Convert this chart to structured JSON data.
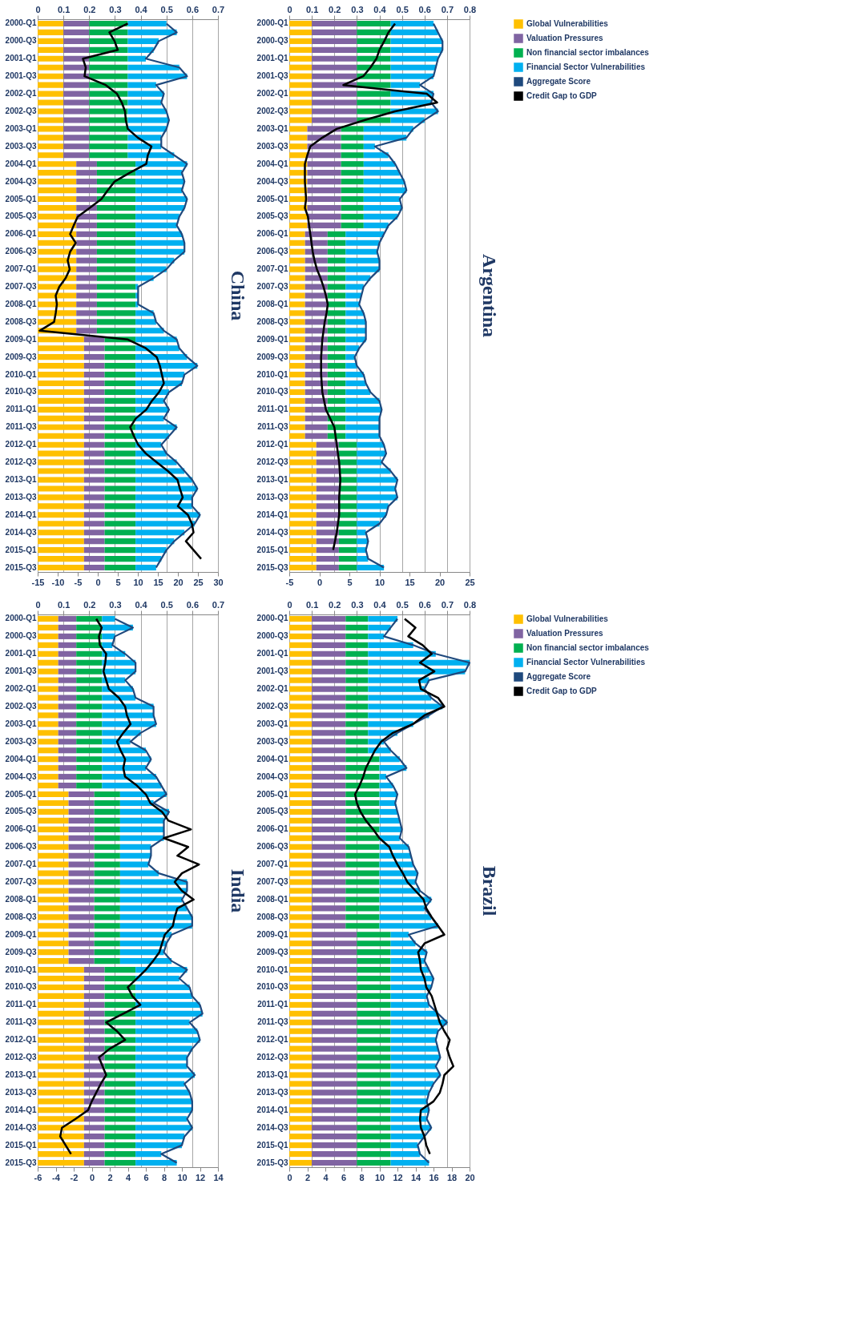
{
  "chart_data": [
    {
      "type": "bar",
      "orientation": "horizontal",
      "stacked": true,
      "title": "China",
      "grid": "x",
      "legend": "right",
      "categories": [
        "2000-Q1",
        null,
        "2000-Q3",
        null,
        "2001-Q1",
        null,
        "2001-Q3",
        null,
        "2002-Q1",
        null,
        "2002-Q3",
        null,
        "2003-Q1",
        null,
        "2003-Q3",
        null,
        "2004-Q1",
        null,
        "2004-Q3",
        null,
        "2005-Q1",
        null,
        "2005-Q3",
        null,
        "2006-Q1",
        null,
        "2006-Q3",
        null,
        "2007-Q1",
        null,
        "2007-Q3",
        null,
        "2008-Q1",
        null,
        "2008-Q3",
        null,
        "2009-Q1",
        null,
        "2009-Q3",
        null,
        "2010-Q1",
        null,
        "2010-Q3",
        null,
        "2011-Q1",
        null,
        "2011-Q3",
        null,
        "2012-Q1",
        null,
        "2012-Q3",
        null,
        "2013-Q1",
        null,
        "2013-Q3",
        null,
        "2014-Q1",
        null,
        "2014-Q3",
        null,
        "2015-Q1",
        null,
        "2015-Q3"
      ],
      "xlim": [
        0,
        0.7
      ],
      "xticks": [
        0,
        0.1,
        0.2,
        0.3,
        0.4,
        0.5,
        0.6,
        0.7
      ],
      "x2lim": [
        -15,
        30
      ],
      "x2ticks": [
        -15,
        -10,
        -5,
        0,
        5,
        10,
        15,
        20,
        25,
        30
      ],
      "series": [
        {
          "name": "Global Vulnerabilities",
          "color": "#ffc000",
          "values": [
            0.1,
            0.1,
            0.1,
            0.1,
            0.1,
            0.1,
            0.1,
            0.1,
            0.1,
            0.1,
            0.1,
            0.1,
            0.1,
            0.1,
            0.1,
            0.1,
            0.15,
            0.15,
            0.15,
            0.15,
            0.15,
            0.15,
            0.15,
            0.15,
            0.15,
            0.15,
            0.15,
            0.15,
            0.15,
            0.15,
            0.15,
            0.15,
            0.15,
            0.15,
            0.15,
            0.15,
            0.18,
            0.18,
            0.18,
            0.18,
            0.18,
            0.18,
            0.18,
            0.18,
            0.18,
            0.18,
            0.18,
            0.18,
            0.18,
            0.18,
            0.18,
            0.18,
            0.18,
            0.18,
            0.18,
            0.18,
            0.18,
            0.18,
            0.18,
            0.18,
            0.18,
            0.18,
            0.18
          ]
        },
        {
          "name": "Valuation Pressures",
          "color": "#8064a2",
          "values": [
            0.1,
            0.1,
            0.1,
            0.1,
            0.1,
            0.1,
            0.1,
            0.1,
            0.1,
            0.1,
            0.1,
            0.1,
            0.1,
            0.1,
            0.1,
            0.1,
            0.08,
            0.08,
            0.08,
            0.08,
            0.08,
            0.08,
            0.08,
            0.08,
            0.08,
            0.08,
            0.08,
            0.08,
            0.08,
            0.08,
            0.08,
            0.08,
            0.08,
            0.08,
            0.08,
            0.08,
            0.08,
            0.08,
            0.08,
            0.08,
            0.08,
            0.08,
            0.08,
            0.08,
            0.08,
            0.08,
            0.08,
            0.08,
            0.08,
            0.08,
            0.08,
            0.08,
            0.08,
            0.08,
            0.08,
            0.08,
            0.08,
            0.08,
            0.08,
            0.08,
            0.08,
            0.08,
            0.08
          ]
        },
        {
          "name": "Non financial sector imbalances",
          "color": "#00b050",
          "values": [
            0.15,
            0.15,
            0.15,
            0.15,
            0.15,
            0.15,
            0.15,
            0.15,
            0.15,
            0.15,
            0.15,
            0.15,
            0.15,
            0.15,
            0.15,
            0.15,
            0.15,
            0.15,
            0.15,
            0.15,
            0.15,
            0.15,
            0.15,
            0.15,
            0.15,
            0.15,
            0.15,
            0.15,
            0.15,
            0.15,
            0.15,
            0.15,
            0.15,
            0.15,
            0.15,
            0.15,
            0.12,
            0.12,
            0.12,
            0.12,
            0.12,
            0.12,
            0.12,
            0.12,
            0.12,
            0.12,
            0.12,
            0.12,
            0.12,
            0.12,
            0.12,
            0.12,
            0.12,
            0.12,
            0.12,
            0.12,
            0.12,
            0.12,
            0.12,
            0.12,
            0.12,
            0.12,
            0.12
          ]
        },
        {
          "name": "Financial Sector Vulnerabilities",
          "color": "#00b0f0",
          "values": [
            0.15,
            0.19,
            0.12,
            0.1,
            0.07,
            0.2,
            0.23,
            0.11,
            0.14,
            0.13,
            0.15,
            0.16,
            0.15,
            0.13,
            0.13,
            0.18,
            0.2,
            0.18,
            0.19,
            0.18,
            0.2,
            0.19,
            0.17,
            0.16,
            0.18,
            0.19,
            0.19,
            0.15,
            0.12,
            0.07,
            0.01,
            0.01,
            0.01,
            0.07,
            0.08,
            0.11,
            0.16,
            0.17,
            0.2,
            0.24,
            0.19,
            0.18,
            0.13,
            0.11,
            0.13,
            0.11,
            0.16,
            0.13,
            0.1,
            0.12,
            0.16,
            0.19,
            0.22,
            0.24,
            0.22,
            0.22,
            0.25,
            0.23,
            0.19,
            0.15,
            0.12,
            0.1,
            0.08
          ]
        },
        {
          "name": "Aggregate Score",
          "type": "line",
          "color": "#1f497d",
          "values": [
            0.5,
            0.54,
            0.47,
            0.45,
            0.42,
            0.55,
            0.58,
            0.46,
            0.49,
            0.48,
            0.5,
            0.51,
            0.5,
            0.48,
            0.48,
            0.53,
            0.58,
            0.56,
            0.57,
            0.56,
            0.58,
            0.57,
            0.55,
            0.54,
            0.56,
            0.57,
            0.57,
            0.53,
            0.5,
            0.45,
            0.39,
            0.39,
            0.39,
            0.45,
            0.46,
            0.49,
            0.54,
            0.55,
            0.58,
            0.62,
            0.57,
            0.56,
            0.51,
            0.49,
            0.51,
            0.49,
            0.54,
            0.51,
            0.48,
            0.5,
            0.54,
            0.57,
            0.6,
            0.62,
            0.6,
            0.6,
            0.63,
            0.61,
            0.57,
            0.53,
            0.5,
            0.48,
            0.46
          ]
        },
        {
          "name": "Credit Gap to GDP",
          "type": "line",
          "axis": "x2",
          "color": "#000000",
          "values": [
            7.5,
            2.9,
            4.2,
            5.0,
            -3.7,
            -3.0,
            -3.3,
            2.0,
            4.8,
            6.0,
            6.8,
            7.0,
            7.5,
            10.0,
            13.4,
            12.5,
            12.1,
            8.0,
            4.2,
            2.5,
            0.9,
            -2.0,
            -5.0,
            -6.0,
            -6.9,
            -5.5,
            -6.9,
            -7.5,
            -7.0,
            -8.0,
            -9.6,
            -10.5,
            -10.2,
            -10.5,
            -10.9,
            -14.5,
            7.5,
            12.0,
            14.7,
            15.5,
            16.0,
            16.5,
            15.3,
            13.5,
            12.1,
            9.5,
            8.1,
            9.0,
            10.1,
            12.0,
            14.7,
            17.5,
            19.9,
            20.5,
            21.2,
            20.0,
            22.5,
            23.5,
            23.9,
            22.0,
            23.9,
            25.8,
            null
          ]
        }
      ]
    },
    {
      "type": "bar",
      "orientation": "horizontal",
      "stacked": true,
      "title": "Argentina",
      "grid": "x",
      "legend": "right",
      "categories": [
        "2000-Q1",
        null,
        "2000-Q3",
        null,
        "2001-Q1",
        null,
        "2001-Q3",
        null,
        "2002-Q1",
        null,
        "2002-Q3",
        null,
        "2003-Q1",
        null,
        "2003-Q3",
        null,
        "2004-Q1",
        null,
        "2004-Q3",
        null,
        "2005-Q1",
        null,
        "2005-Q3",
        null,
        "2006-Q1",
        null,
        "2006-Q3",
        null,
        "2007-Q1",
        null,
        "2007-Q3",
        null,
        "2008-Q1",
        null,
        "2008-Q3",
        null,
        "2009-Q1",
        null,
        "2009-Q3",
        null,
        "2010-Q1",
        null,
        "2010-Q3",
        null,
        "2011-Q1",
        null,
        "2011-Q3",
        null,
        "2012-Q1",
        null,
        "2012-Q3",
        null,
        "2013-Q1",
        null,
        "2013-Q3",
        null,
        "2014-Q1",
        null,
        "2014-Q3",
        null,
        "2015-Q1",
        null,
        "2015-Q3"
      ],
      "xlim": [
        0,
        0.8
      ],
      "xticks": [
        0,
        0.1,
        0.2,
        0.3,
        0.4,
        0.5,
        0.6,
        0.7,
        0.8
      ],
      "x2lim": [
        -5,
        25
      ],
      "x2ticks": [
        -5,
        0,
        5,
        10,
        15,
        20,
        25
      ],
      "series": [
        {
          "name": "Global Vulnerabilities",
          "color": "#ffc000",
          "values": [
            0.1,
            0.1,
            0.1,
            0.1,
            0.1,
            0.1,
            0.1,
            0.1,
            0.1,
            0.1,
            0.1,
            0.1,
            0.08,
            0.08,
            0.08,
            0.08,
            0.08,
            0.08,
            0.08,
            0.08,
            0.08,
            0.08,
            0.08,
            0.08,
            0.07,
            0.07,
            0.07,
            0.07,
            0.07,
            0.07,
            0.07,
            0.07,
            0.07,
            0.07,
            0.07,
            0.07,
            0.07,
            0.07,
            0.07,
            0.07,
            0.07,
            0.07,
            0.07,
            0.07,
            0.07,
            0.07,
            0.07,
            0.07,
            0.12,
            0.12,
            0.12,
            0.12,
            0.12,
            0.12,
            0.12,
            0.12,
            0.12,
            0.12,
            0.12,
            0.12,
            0.12,
            0.12,
            0.12
          ]
        },
        {
          "name": "Valuation Pressures",
          "color": "#8064a2",
          "values": [
            0.2,
            0.2,
            0.2,
            0.2,
            0.2,
            0.2,
            0.2,
            0.2,
            0.2,
            0.2,
            0.2,
            0.2,
            0.15,
            0.15,
            0.15,
            0.15,
            0.15,
            0.15,
            0.15,
            0.15,
            0.15,
            0.15,
            0.15,
            0.15,
            0.1,
            0.1,
            0.1,
            0.1,
            0.1,
            0.1,
            0.1,
            0.1,
            0.1,
            0.1,
            0.1,
            0.1,
            0.1,
            0.1,
            0.1,
            0.1,
            0.1,
            0.1,
            0.1,
            0.1,
            0.1,
            0.1,
            0.1,
            0.1,
            0.1,
            0.1,
            0.1,
            0.1,
            0.1,
            0.1,
            0.1,
            0.1,
            0.1,
            0.1,
            0.1,
            0.1,
            0.1,
            0.1,
            0.1
          ]
        },
        {
          "name": "Non financial sector imbalances",
          "color": "#00b050",
          "values": [
            0.15,
            0.15,
            0.15,
            0.15,
            0.15,
            0.15,
            0.15,
            0.15,
            0.15,
            0.15,
            0.15,
            0.15,
            0.1,
            0.1,
            0.1,
            0.1,
            0.1,
            0.1,
            0.1,
            0.1,
            0.1,
            0.1,
            0.1,
            0.1,
            0.08,
            0.08,
            0.08,
            0.08,
            0.08,
            0.08,
            0.08,
            0.08,
            0.08,
            0.08,
            0.08,
            0.08,
            0.08,
            0.08,
            0.08,
            0.08,
            0.08,
            0.08,
            0.08,
            0.08,
            0.08,
            0.08,
            0.08,
            0.08,
            0.08,
            0.08,
            0.08,
            0.08,
            0.08,
            0.08,
            0.08,
            0.08,
            0.08,
            0.08,
            0.08,
            0.08,
            0.08,
            0.08,
            0.08
          ]
        },
        {
          "name": "Financial Sector Vulnerabilities",
          "color": "#00b0f0",
          "values": [
            0.19,
            0.21,
            0.23,
            0.23,
            0.21,
            0.2,
            0.19,
            0.13,
            0.19,
            0.18,
            0.21,
            0.15,
            0.22,
            0.19,
            0.05,
            0.11,
            0.14,
            0.16,
            0.18,
            0.19,
            0.16,
            0.17,
            0.15,
            0.11,
            0.17,
            0.15,
            0.14,
            0.15,
            0.15,
            0.11,
            0.08,
            0.07,
            0.06,
            0.08,
            0.09,
            0.09,
            0.09,
            0.06,
            0.04,
            0.05,
            0.08,
            0.09,
            0.11,
            0.15,
            0.16,
            0.15,
            0.15,
            0.15,
            0.12,
            0.13,
            0.11,
            0.15,
            0.18,
            0.17,
            0.18,
            0.14,
            0.13,
            0.1,
            0.04,
            0.05,
            0.04,
            0.05,
            0.12
          ]
        },
        {
          "name": "Aggregate Score",
          "type": "line",
          "color": "#1f497d",
          "values": [
            0.64,
            0.66,
            0.68,
            0.68,
            0.66,
            0.65,
            0.64,
            0.58,
            0.64,
            0.63,
            0.66,
            0.6,
            0.55,
            0.52,
            0.38,
            0.44,
            0.47,
            0.49,
            0.51,
            0.52,
            0.49,
            0.5,
            0.48,
            0.44,
            0.42,
            0.4,
            0.39,
            0.4,
            0.4,
            0.36,
            0.33,
            0.32,
            0.31,
            0.33,
            0.34,
            0.34,
            0.34,
            0.31,
            0.29,
            0.3,
            0.33,
            0.34,
            0.36,
            0.4,
            0.41,
            0.4,
            0.4,
            0.4,
            0.42,
            0.43,
            0.41,
            0.45,
            0.48,
            0.47,
            0.48,
            0.44,
            0.43,
            0.4,
            0.34,
            0.35,
            0.34,
            0.35,
            0.42
          ]
        },
        {
          "name": "Credit Gap to GDP",
          "type": "line",
          "axis": "x2",
          "color": "#000000",
          "values": [
            12.6,
            11.5,
            10.8,
            10.0,
            9.5,
            8.5,
            7.3,
            4.0,
            17.9,
            19.6,
            12.6,
            7.5,
            2.9,
            0.5,
            -1.5,
            -2.0,
            -2.4,
            -2.4,
            -2.4,
            -2.3,
            -2.2,
            -2.4,
            -1.9,
            -1.7,
            -1.5,
            -1.3,
            -1.1,
            -0.8,
            -0.4,
            0.2,
            0.7,
            1.1,
            1.4,
            1.2,
            0.9,
            0.7,
            0.5,
            0.4,
            0.3,
            0.3,
            0.3,
            0.4,
            0.5,
            0.8,
            1.1,
            1.8,
            2.5,
            2.7,
            2.9,
            3.1,
            3.3,
            3.4,
            3.5,
            3.4,
            3.3,
            3.3,
            3.3,
            3.1,
            2.9,
            2.6,
            2.3,
            null,
            null
          ]
        }
      ]
    },
    {
      "type": "bar",
      "orientation": "horizontal",
      "stacked": true,
      "title": "India",
      "grid": "x",
      "legend": "right",
      "categories": [
        "2000-Q1",
        null,
        "2000-Q3",
        null,
        "2001-Q1",
        null,
        "2001-Q3",
        null,
        "2002-Q1",
        null,
        "2002-Q3",
        null,
        "2003-Q1",
        null,
        "2003-Q3",
        null,
        "2004-Q1",
        null,
        "2004-Q3",
        null,
        "2005-Q1",
        null,
        "2005-Q3",
        null,
        "2006-Q1",
        null,
        "2006-Q3",
        null,
        "2007-Q1",
        null,
        "2007-Q3",
        null,
        "2008-Q1",
        null,
        "2008-Q3",
        null,
        "2009-Q1",
        null,
        "2009-Q3",
        null,
        "2010-Q1",
        null,
        "2010-Q3",
        null,
        "2011-Q1",
        null,
        "2011-Q3",
        null,
        "2012-Q1",
        null,
        "2012-Q3",
        null,
        "2013-Q1",
        null,
        "2013-Q3",
        null,
        "2014-Q1",
        null,
        "2014-Q3",
        null,
        "2015-Q1",
        null,
        "2015-Q3"
      ],
      "xlim": [
        0,
        0.7
      ],
      "xticks": [
        0,
        0.1,
        0.2,
        0.3,
        0.4,
        0.5,
        0.6,
        0.7
      ],
      "x2lim": [
        -6,
        14
      ],
      "x2ticks": [
        -6,
        -4,
        -2,
        0,
        2,
        4,
        6,
        8,
        10,
        12,
        14
      ],
      "series": [
        {
          "name": "Global Vulnerabilities",
          "color": "#ffc000",
          "values": [
            0.08,
            0.08,
            0.08,
            0.08,
            0.08,
            0.08,
            0.08,
            0.08,
            0.08,
            0.08,
            0.08,
            0.08,
            0.08,
            0.08,
            0.08,
            0.08,
            0.08,
            0.08,
            0.08,
            0.08,
            0.12,
            0.12,
            0.12,
            0.12,
            0.12,
            0.12,
            0.12,
            0.12,
            0.12,
            0.12,
            0.12,
            0.12,
            0.12,
            0.12,
            0.12,
            0.12,
            0.12,
            0.12,
            0.12,
            0.12,
            0.18,
            0.18,
            0.18,
            0.18,
            0.18,
            0.18,
            0.18,
            0.18,
            0.18,
            0.18,
            0.18,
            0.18,
            0.18,
            0.18,
            0.18,
            0.18,
            0.18,
            0.18,
            0.18,
            0.18,
            0.18,
            0.18,
            0.18
          ]
        },
        {
          "name": "Valuation Pressures",
          "color": "#8064a2",
          "values": [
            0.07,
            0.07,
            0.07,
            0.07,
            0.07,
            0.07,
            0.07,
            0.07,
            0.07,
            0.07,
            0.07,
            0.07,
            0.07,
            0.07,
            0.07,
            0.07,
            0.07,
            0.07,
            0.07,
            0.07,
            0.1,
            0.1,
            0.1,
            0.1,
            0.1,
            0.1,
            0.1,
            0.1,
            0.1,
            0.1,
            0.1,
            0.1,
            0.1,
            0.1,
            0.1,
            0.1,
            0.1,
            0.1,
            0.1,
            0.1,
            0.08,
            0.08,
            0.08,
            0.08,
            0.08,
            0.08,
            0.08,
            0.08,
            0.08,
            0.08,
            0.08,
            0.08,
            0.08,
            0.08,
            0.08,
            0.08,
            0.08,
            0.08,
            0.08,
            0.08,
            0.08,
            0.08,
            0.08
          ]
        },
        {
          "name": "Non financial sector imbalances",
          "color": "#00b050",
          "values": [
            0.1,
            0.1,
            0.1,
            0.1,
            0.1,
            0.1,
            0.1,
            0.1,
            0.1,
            0.1,
            0.1,
            0.1,
            0.1,
            0.1,
            0.1,
            0.1,
            0.1,
            0.1,
            0.1,
            0.1,
            0.1,
            0.1,
            0.1,
            0.1,
            0.1,
            0.1,
            0.1,
            0.1,
            0.1,
            0.1,
            0.1,
            0.1,
            0.1,
            0.1,
            0.1,
            0.1,
            0.1,
            0.1,
            0.1,
            0.1,
            0.12,
            0.12,
            0.12,
            0.12,
            0.12,
            0.12,
            0.12,
            0.12,
            0.12,
            0.12,
            0.12,
            0.12,
            0.12,
            0.12,
            0.12,
            0.12,
            0.12,
            0.12,
            0.12,
            0.12,
            0.12,
            0.12,
            0.12
          ]
        },
        {
          "name": "Financial Sector Vulnerabilities",
          "color": "#00b0f0",
          "values": [
            0.05,
            0.12,
            0.05,
            0.04,
            0.09,
            0.13,
            0.13,
            0.09,
            0.12,
            0.13,
            0.2,
            0.2,
            0.21,
            0.15,
            0.11,
            0.17,
            0.19,
            0.17,
            0.21,
            0.23,
            0.18,
            0.13,
            0.19,
            0.17,
            0.17,
            0.17,
            0.12,
            0.12,
            0.11,
            0.15,
            0.26,
            0.26,
            0.24,
            0.26,
            0.28,
            0.28,
            0.2,
            0.18,
            0.17,
            0.2,
            0.2,
            0.17,
            0.21,
            0.22,
            0.25,
            0.26,
            0.21,
            0.24,
            0.25,
            0.22,
            0.2,
            0.2,
            0.23,
            0.19,
            0.21,
            0.22,
            0.22,
            0.2,
            0.22,
            0.19,
            0.18,
            0.1,
            0.16
          ]
        },
        {
          "name": "Aggregate Score",
          "type": "line",
          "color": "#1f497d",
          "values": [
            0.3,
            0.37,
            0.3,
            0.29,
            0.34,
            0.38,
            0.38,
            0.34,
            0.37,
            0.38,
            0.45,
            0.45,
            0.46,
            0.4,
            0.36,
            0.42,
            0.44,
            0.42,
            0.46,
            0.48,
            0.5,
            0.45,
            0.51,
            0.49,
            0.49,
            0.49,
            0.44,
            0.44,
            0.43,
            0.47,
            0.58,
            0.58,
            0.56,
            0.58,
            0.6,
            0.6,
            0.52,
            0.5,
            0.49,
            0.52,
            0.58,
            0.55,
            0.59,
            0.6,
            0.63,
            0.64,
            0.59,
            0.62,
            0.63,
            0.6,
            0.58,
            0.58,
            0.61,
            0.57,
            0.59,
            0.6,
            0.6,
            0.58,
            0.6,
            0.57,
            0.56,
            0.48,
            0.54
          ]
        },
        {
          "name": "Credit Gap to GDP",
          "type": "line",
          "axis": "x2",
          "color": "#000000",
          "values": [
            0.5,
            1.1,
            0.8,
            0.9,
            1.6,
            1.5,
            1.3,
            1.6,
            1.9,
            3.0,
            3.7,
            3.9,
            4.3,
            3.5,
            2.8,
            3.2,
            3.7,
            3.5,
            3.7,
            5.0,
            6.0,
            6.5,
            7.8,
            8.5,
            11.0,
            8.0,
            10.7,
            9.5,
            11.9,
            10.0,
            9.2,
            10.0,
            11.3,
            9.5,
            9.2,
            9.0,
            8.1,
            7.8,
            7.5,
            6.8,
            6.0,
            5.0,
            4.0,
            4.5,
            5.4,
            3.5,
            1.6,
            2.8,
            3.7,
            2.0,
            0.8,
            1.2,
            1.6,
            1.0,
            0.5,
            0.0,
            -0.4,
            -1.8,
            -3.3,
            -3.5,
            -2.9,
            -2.3,
            null
          ]
        }
      ]
    },
    {
      "type": "bar",
      "orientation": "horizontal",
      "stacked": true,
      "title": "Brazil",
      "grid": "x",
      "legend": "right",
      "categories": [
        "2000-Q1",
        null,
        "2000-Q3",
        null,
        "2001-Q1",
        null,
        "2001-Q3",
        null,
        "2002-Q1",
        null,
        "2002-Q3",
        null,
        "2003-Q1",
        null,
        "2003-Q3",
        null,
        "2004-Q1",
        null,
        "2004-Q3",
        null,
        "2005-Q1",
        null,
        "2005-Q3",
        null,
        "2006-Q1",
        null,
        "2006-Q3",
        null,
        "2007-Q1",
        null,
        "2007-Q3",
        null,
        "2008-Q1",
        null,
        "2008-Q3",
        null,
        "2009-Q1",
        null,
        "2009-Q3",
        null,
        "2010-Q1",
        null,
        "2010-Q3",
        null,
        "2011-Q1",
        null,
        "2011-Q3",
        null,
        "2012-Q1",
        null,
        "2012-Q3",
        null,
        "2013-Q1",
        null,
        "2013-Q3",
        null,
        "2014-Q1",
        null,
        "2014-Q3",
        null,
        "2015-Q1",
        null,
        "2015-Q3"
      ],
      "xlim": [
        0,
        0.8
      ],
      "xticks": [
        0,
        0.1,
        0.2,
        0.3,
        0.4,
        0.5,
        0.6,
        0.7,
        0.8
      ],
      "x2lim": [
        0,
        20
      ],
      "x2ticks": [
        0,
        2,
        4,
        6,
        8,
        10,
        12,
        14,
        16,
        18,
        20
      ],
      "series": [
        {
          "name": "Global Vulnerabilities",
          "color": "#ffc000",
          "values": [
            0.1,
            0.1,
            0.1,
            0.1,
            0.1,
            0.1,
            0.1,
            0.1,
            0.1,
            0.1,
            0.1,
            0.1,
            0.1,
            0.1,
            0.1,
            0.1,
            0.1,
            0.1,
            0.1,
            0.1,
            0.1,
            0.1,
            0.1,
            0.1,
            0.1,
            0.1,
            0.1,
            0.1,
            0.1,
            0.1,
            0.1,
            0.1,
            0.1,
            0.1,
            0.1,
            0.1,
            0.1,
            0.1,
            0.1,
            0.1,
            0.1,
            0.1,
            0.1,
            0.1,
            0.1,
            0.1,
            0.1,
            0.1,
            0.1,
            0.1,
            0.1,
            0.1,
            0.1,
            0.1,
            0.1,
            0.1,
            0.1,
            0.1,
            0.1,
            0.1,
            0.1,
            0.1,
            0.1
          ]
        },
        {
          "name": "Valuation Pressures",
          "color": "#8064a2",
          "values": [
            0.15,
            0.15,
            0.15,
            0.15,
            0.15,
            0.15,
            0.15,
            0.15,
            0.15,
            0.15,
            0.15,
            0.15,
            0.15,
            0.15,
            0.15,
            0.15,
            0.15,
            0.15,
            0.15,
            0.15,
            0.15,
            0.15,
            0.15,
            0.15,
            0.15,
            0.15,
            0.15,
            0.15,
            0.15,
            0.15,
            0.15,
            0.15,
            0.15,
            0.15,
            0.15,
            0.15,
            0.2,
            0.2,
            0.2,
            0.2,
            0.2,
            0.2,
            0.2,
            0.2,
            0.2,
            0.2,
            0.2,
            0.2,
            0.2,
            0.2,
            0.2,
            0.2,
            0.2,
            0.2,
            0.2,
            0.2,
            0.2,
            0.2,
            0.2,
            0.2,
            0.2,
            0.2,
            0.2
          ]
        },
        {
          "name": "Non financial sector imbalances",
          "color": "#00b050",
          "values": [
            0.1,
            0.1,
            0.1,
            0.1,
            0.1,
            0.1,
            0.1,
            0.1,
            0.1,
            0.1,
            0.1,
            0.1,
            0.1,
            0.1,
            0.1,
            0.1,
            0.15,
            0.15,
            0.15,
            0.15,
            0.15,
            0.15,
            0.15,
            0.15,
            0.15,
            0.15,
            0.15,
            0.15,
            0.15,
            0.15,
            0.15,
            0.15,
            0.15,
            0.15,
            0.15,
            0.15,
            0.15,
            0.15,
            0.15,
            0.15,
            0.15,
            0.15,
            0.15,
            0.15,
            0.15,
            0.15,
            0.15,
            0.15,
            0.15,
            0.15,
            0.15,
            0.15,
            0.15,
            0.15,
            0.15,
            0.15,
            0.15,
            0.15,
            0.15,
            0.15,
            0.15,
            0.15,
            0.15
          ]
        },
        {
          "name": "Financial Sector Vulnerabilities",
          "color": "#00b0f0",
          "values": [
            0.13,
            0.1,
            0.07,
            0.2,
            0.3,
            0.45,
            0.43,
            0.27,
            0.25,
            0.28,
            0.33,
            0.27,
            0.2,
            0.13,
            0.07,
            0.1,
            0.09,
            0.12,
            0.03,
            0.06,
            0.08,
            0.07,
            0.08,
            0.09,
            0.1,
            0.09,
            0.13,
            0.14,
            0.15,
            0.17,
            0.16,
            0.18,
            0.23,
            0.2,
            0.23,
            0.26,
            0.08,
            0.11,
            0.16,
            0.15,
            0.17,
            0.19,
            0.18,
            0.16,
            0.17,
            0.21,
            0.25,
            0.21,
            0.2,
            0.21,
            0.22,
            0.2,
            0.22,
            0.19,
            0.17,
            0.16,
            0.17,
            0.16,
            0.18,
            0.15,
            0.12,
            0.13,
            0.17
          ]
        },
        {
          "name": "Aggregate Score",
          "type": "line",
          "color": "#1f497d",
          "values": [
            0.48,
            0.45,
            0.42,
            0.55,
            0.65,
            0.8,
            0.78,
            0.62,
            0.6,
            0.63,
            0.68,
            0.62,
            0.55,
            0.48,
            0.42,
            0.45,
            0.49,
            0.52,
            0.43,
            0.46,
            0.48,
            0.47,
            0.48,
            0.49,
            0.5,
            0.49,
            0.53,
            0.54,
            0.55,
            0.57,
            0.56,
            0.58,
            0.63,
            0.6,
            0.63,
            0.66,
            0.53,
            0.56,
            0.61,
            0.6,
            0.62,
            0.64,
            0.63,
            0.61,
            0.62,
            0.66,
            0.7,
            0.66,
            0.65,
            0.66,
            0.67,
            0.65,
            0.67,
            0.64,
            0.62,
            0.61,
            0.62,
            0.61,
            0.63,
            0.6,
            0.57,
            0.58,
            0.62
          ]
        },
        {
          "name": "Credit Gap to GDP",
          "type": "line",
          "axis": "x2",
          "color": "#000000",
          "values": [
            12.8,
            14.0,
            13.2,
            14.8,
            15.8,
            14.5,
            16.1,
            14.4,
            14.6,
            16.5,
            17.2,
            15.0,
            13.7,
            11.5,
            10.2,
            9.5,
            9.0,
            8.5,
            8.2,
            7.8,
            7.3,
            7.5,
            7.9,
            8.5,
            9.3,
            10.0,
            11.1,
            11.5,
            12.0,
            12.6,
            13.1,
            14.0,
            14.9,
            15.2,
            15.8,
            16.5,
            17.2,
            15.0,
            14.3,
            14.5,
            14.6,
            15.0,
            15.2,
            15.8,
            16.1,
            16.4,
            16.7,
            17.2,
            17.8,
            17.5,
            17.8,
            18.2,
            17.2,
            17.0,
            16.7,
            16.0,
            14.6,
            14.5,
            14.6,
            15.0,
            15.2,
            15.6,
            null
          ]
        }
      ]
    }
  ]
}
